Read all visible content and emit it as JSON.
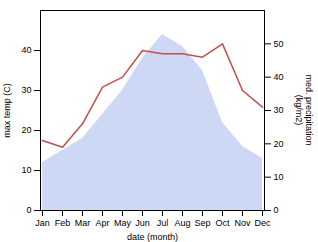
{
  "chart_data": {
    "type": "line",
    "categories": [
      "Jan",
      "Feb",
      "Mar",
      "Apr",
      "May",
      "Jun",
      "Jul",
      "Aug",
      "Sep",
      "Oct",
      "Nov",
      "Dec"
    ],
    "xlabel": "date (month)",
    "ylabel": "max temp (C)",
    "y2label": "med. precipitation\n(kg/m2)",
    "ylim": [
      0,
      50
    ],
    "yticks": [
      0,
      10,
      20,
      30,
      40
    ],
    "y2lim": [
      0,
      60
    ],
    "y2ticks": [
      0,
      10,
      20,
      30,
      40,
      50
    ],
    "series": [
      {
        "type": "area",
        "color": "#b8c8f0",
        "values": [
          12,
          15,
          18,
          24,
          30,
          38,
          44,
          41,
          35,
          22,
          16,
          13
        ]
      },
      {
        "type": "line",
        "color": "#c0504d",
        "axis": "y2",
        "values": [
          21,
          19,
          26,
          37,
          40,
          48,
          47,
          47,
          46,
          50,
          36,
          31
        ]
      }
    ]
  }
}
